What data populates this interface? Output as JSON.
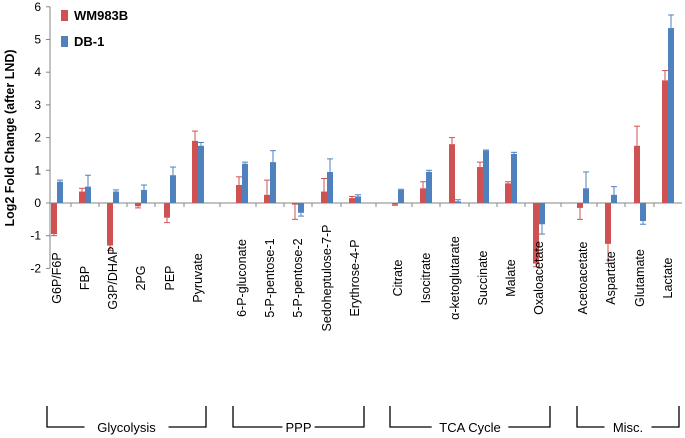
{
  "chart_data": {
    "type": "bar",
    "title": "",
    "xlabel": "",
    "ylabel": "Log2 Fold Change (after LND)",
    "ylim": [
      -2,
      6
    ],
    "yticks": [
      -2,
      -1,
      0,
      1,
      2,
      3,
      4,
      5,
      6
    ],
    "grid": false,
    "legend_position": "top-left",
    "categories": [
      "G6P/F6P",
      "FBP",
      "G3P/DHAP",
      "2PG",
      "PEP",
      "Pyruvate",
      "6-P-gluconate",
      "5-P-pentose-1",
      "5-P-pentose-2",
      "Sedoheptulose-7-P",
      "Erythrose-4-P",
      "Citrate",
      "Isocitrate",
      "α-ketoglutarate",
      "Succinate",
      "Malate",
      "Oxaloacetate",
      "Acetoacetate",
      "Aspartate",
      "Glutamate",
      "Lactate"
    ],
    "series": [
      {
        "name": "WM983B",
        "color": "#d05152",
        "values": [
          -0.95,
          0.35,
          -1.3,
          -0.1,
          -0.45,
          1.9,
          0.55,
          0.25,
          -0.05,
          0.35,
          0.15,
          -0.05,
          0.45,
          1.8,
          1.1,
          0.6,
          -1.85,
          -0.15,
          -1.25,
          1.75,
          3.75
        ],
        "errors": [
          0.05,
          0.1,
          0.15,
          0.05,
          0.15,
          0.3,
          0.25,
          0.45,
          0.45,
          0.4,
          0.05,
          0.02,
          0.2,
          0.2,
          0.15,
          0.05,
          0.1,
          0.35,
          0.6,
          0.6,
          0.3
        ]
      },
      {
        "name": "DB-1",
        "color": "#4f81bd",
        "values": [
          0.65,
          0.5,
          0.35,
          0.4,
          0.85,
          1.75,
          1.2,
          1.25,
          -0.3,
          0.95,
          0.2,
          0.4,
          0.95,
          0.05,
          1.6,
          1.5,
          -0.65,
          0.45,
          0.25,
          -0.55,
          5.35
        ],
        "errors": [
          0.05,
          0.35,
          0.05,
          0.15,
          0.25,
          0.1,
          0.05,
          0.35,
          0.1,
          0.4,
          0.05,
          0.02,
          0.05,
          0.05,
          0.02,
          0.05,
          0.3,
          0.5,
          0.25,
          0.1,
          0.4
        ]
      }
    ],
    "groups": [
      {
        "label": "Glycolysis",
        "start": 0,
        "end": 5
      },
      {
        "label": "PPP",
        "start": 6,
        "end": 10
      },
      {
        "label": "TCA Cycle",
        "start": 11,
        "end": 16
      },
      {
        "label": "Misc.",
        "start": 17,
        "end": 20
      }
    ]
  }
}
